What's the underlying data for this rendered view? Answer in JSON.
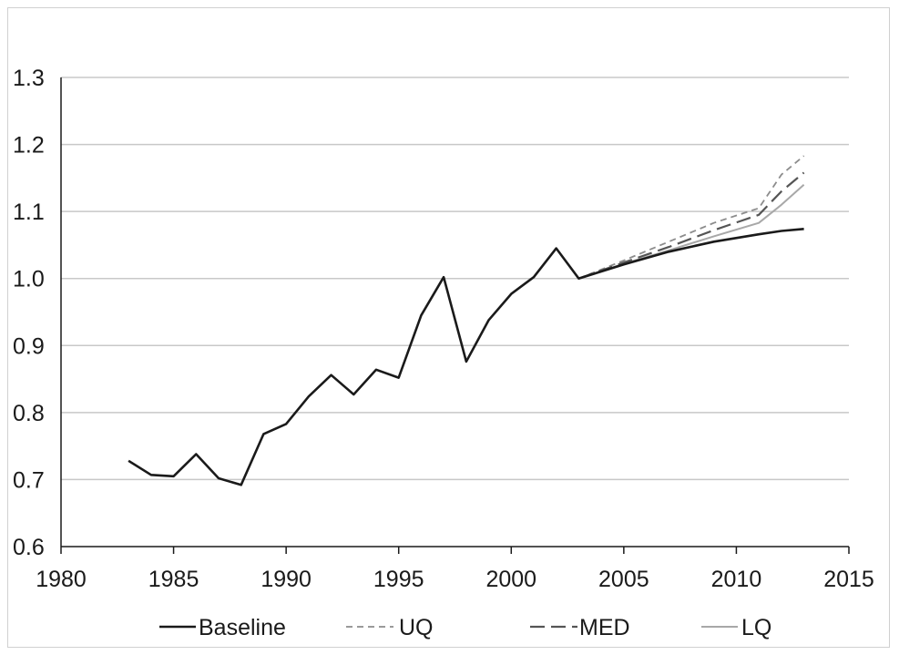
{
  "chart_data": {
    "type": "line",
    "title": "",
    "xlabel": "",
    "ylabel": "",
    "xlim": [
      1980,
      2015
    ],
    "ylim": [
      0.6,
      1.3
    ],
    "x_ticks": [
      "1980",
      "1985",
      "1990",
      "1995",
      "2000",
      "2005",
      "2010",
      "2015"
    ],
    "y_ticks": [
      "0.6",
      "0.7",
      "0.8",
      "0.9",
      "1.0",
      "1.1",
      "1.2",
      "1.3"
    ],
    "grid": "horizontal",
    "legend_position": "bottom",
    "series": [
      {
        "name": "Baseline",
        "color": "#1a1a1a",
        "style": "solid",
        "x": [
          1983,
          1984,
          1985,
          1986,
          1987,
          1988,
          1989,
          1990,
          1991,
          1992,
          1993,
          1994,
          1995,
          1996,
          1997,
          1998,
          1999,
          2000,
          2001,
          2002,
          2003,
          2005,
          2007,
          2009,
          2011,
          2012,
          2013
        ],
        "values": [
          0.728,
          0.707,
          0.705,
          0.738,
          0.702,
          0.692,
          0.768,
          0.783,
          0.824,
          0.856,
          0.827,
          0.864,
          0.852,
          0.945,
          1.002,
          0.876,
          0.938,
          0.977,
          1.002,
          1.045,
          1.0,
          1.021,
          1.04,
          1.055,
          1.066,
          1.071,
          1.074
        ]
      },
      {
        "name": "UQ",
        "color": "#8c8c8c",
        "style": "short-dash",
        "x": [
          2003,
          2005,
          2007,
          2009,
          2011,
          2012,
          2013
        ],
        "values": [
          1.0,
          1.027,
          1.055,
          1.083,
          1.105,
          1.155,
          1.183
        ]
      },
      {
        "name": "MED",
        "color": "#555555",
        "style": "long-dash",
        "x": [
          2003,
          2005,
          2007,
          2009,
          2011,
          2012,
          2013
        ],
        "values": [
          1.0,
          1.024,
          1.047,
          1.072,
          1.095,
          1.13,
          1.158
        ]
      },
      {
        "name": "LQ",
        "color": "#a8a8a8",
        "style": "solid",
        "x": [
          2003,
          2005,
          2007,
          2009,
          2011,
          2012,
          2013
        ],
        "values": [
          1.0,
          1.022,
          1.042,
          1.063,
          1.083,
          1.11,
          1.14
        ]
      }
    ]
  }
}
